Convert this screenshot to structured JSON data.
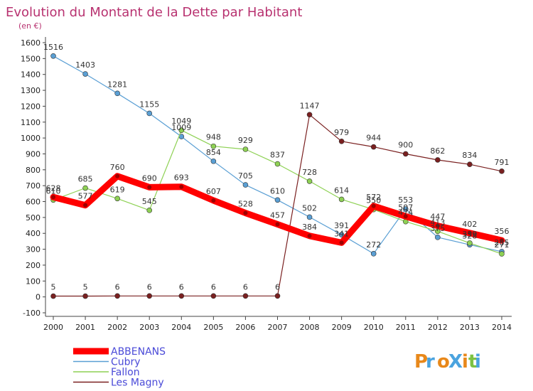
{
  "chart_data": {
    "type": "line",
    "title": "Evolution du Montant de la Dette par Habitant",
    "subtitle": "(en €)",
    "x": [
      "2000",
      "2001",
      "2002",
      "2003",
      "2004",
      "2005",
      "2006",
      "2007",
      "2008",
      "2009",
      "2010",
      "2011",
      "2012",
      "2013",
      "2014"
    ],
    "ylim": [
      -100,
      1600
    ],
    "yticks": [
      -100,
      0,
      100,
      200,
      300,
      400,
      500,
      600,
      700,
      800,
      900,
      1000,
      1100,
      1200,
      1300,
      1400,
      1500,
      1600
    ],
    "grid": false,
    "legend_position": "bottom-left",
    "series": [
      {
        "name": "ABBENANS",
        "color": "#ff0000",
        "values": [
          628,
          577,
          760,
          690,
          693,
          607,
          528,
          457,
          384,
          341,
          572,
          507,
          447,
          402,
          356
        ],
        "labels": [
          "628",
          "577",
          "760",
          "690",
          "693",
          "607",
          "528",
          "457",
          "384",
          "341",
          "572",
          "507",
          "447",
          "402",
          "356"
        ]
      },
      {
        "name": "Cubry",
        "color": "#5a9fd4",
        "values": [
          1516,
          1403,
          1281,
          1155,
          1009,
          854,
          705,
          610,
          502,
          391,
          272,
          553,
          375,
          328,
          285
        ],
        "labels": [
          "1516",
          "1403",
          "1281",
          "1155",
          "1009",
          "854",
          "705",
          "610",
          "502",
          "391",
          "272",
          "553",
          "375",
          "328",
          "285"
        ]
      },
      {
        "name": "Fallon",
        "color": "#8ed154",
        "values": [
          610,
          685,
          619,
          545,
          1049,
          948,
          929,
          837,
          728,
          614,
          550,
          474,
          413,
          339,
          271
        ],
        "labels": [
          "610",
          "685",
          "619",
          "545",
          "1049",
          "948",
          "929",
          "837",
          "728",
          "614",
          "550",
          "474",
          "413",
          "339",
          "271"
        ]
      },
      {
        "name": "Les Magny",
        "color": "#7a2020",
        "values": [
          5,
          5,
          6,
          6,
          6,
          6,
          6,
          6,
          1147,
          979,
          944,
          900,
          862,
          834,
          791
        ],
        "labels": [
          "5",
          "5",
          "6",
          "6",
          "6",
          "6",
          "6",
          "6",
          "1147",
          "979",
          "944",
          "900",
          "862",
          "834",
          "791"
        ]
      }
    ]
  },
  "logo_text": "ProXiti",
  "legend_text_color": "#4a4ad8",
  "title_color": "#b83270"
}
